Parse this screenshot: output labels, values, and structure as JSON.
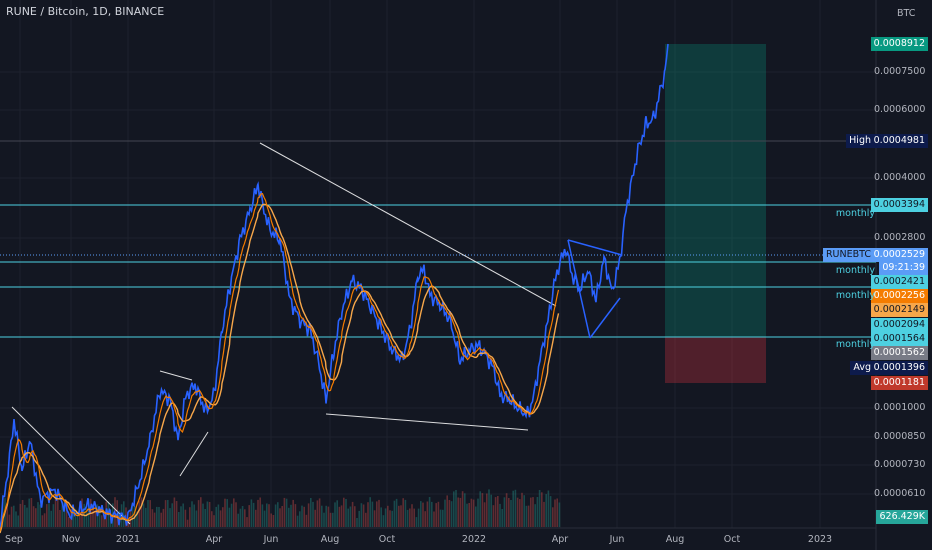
{
  "header": {
    "symbol_line": "RUNE / Bitcoin, 1D, BINANCE"
  },
  "axis": {
    "currency": "BTC",
    "y_ticks": [
      "0.0007500",
      "0.0006000",
      "0.0004000",
      "0.0002800",
      "0.0001000",
      "0.0000850",
      "0.0000730",
      "0.0000610"
    ],
    "x_ticks": [
      "Sep",
      "Nov",
      "2021",
      "Apr",
      "Jun",
      "Aug",
      "Oct",
      "2022",
      "Apr",
      "Jun",
      "Aug",
      "Oct",
      "2023"
    ]
  },
  "price_labels": {
    "target": {
      "text": "0.0008912",
      "color": "#089981"
    },
    "high_tag": "High",
    "high": {
      "text": "0.0004981",
      "color": "#0d1b4c"
    },
    "monthly_1": {
      "text": "0.0003394",
      "color": "#4dd0e1"
    },
    "symbol_tag": "RUNEBTC",
    "last_price": {
      "text": "0.0002529",
      "color": "#5b9cf6"
    },
    "countdown": "09:21:39",
    "monthly_2": {
      "text": "0.0002421",
      "color": "#4dd0e1"
    },
    "ma_fast": {
      "text": "0.0002256",
      "color": "#f57c00"
    },
    "ma_slow": {
      "text": "0.0002149",
      "color": "#f7a74a"
    },
    "monthly_3": {
      "text": "0.0002094",
      "color": "#4dd0e1"
    },
    "monthly_4": {
      "text": "0.0001564",
      "color": "#4dd0e1"
    },
    "entry": {
      "text": "0.0001562",
      "color": "#787b86"
    },
    "avg_tag": "Avg",
    "avg": {
      "text": "0.0001396",
      "color": "#0d1b4c"
    },
    "stop": {
      "text": "0.0001181",
      "color": "#c0392b"
    },
    "volume": {
      "text": "626.429K",
      "color": "#26a69a"
    }
  },
  "level_labels": {
    "m1": "monthly",
    "m2": "monthly",
    "m3": "monthly",
    "m4": "monthly"
  },
  "colors": {
    "background": "#131722",
    "price_line": "#2962ff",
    "ma_fast": "#f57c00",
    "ma_slow": "#f7a74a",
    "level_lines": "#4dd0e1",
    "trendlines": "#ffffff",
    "volume_up": "#26a69a",
    "volume_down": "#ef5350"
  }
}
